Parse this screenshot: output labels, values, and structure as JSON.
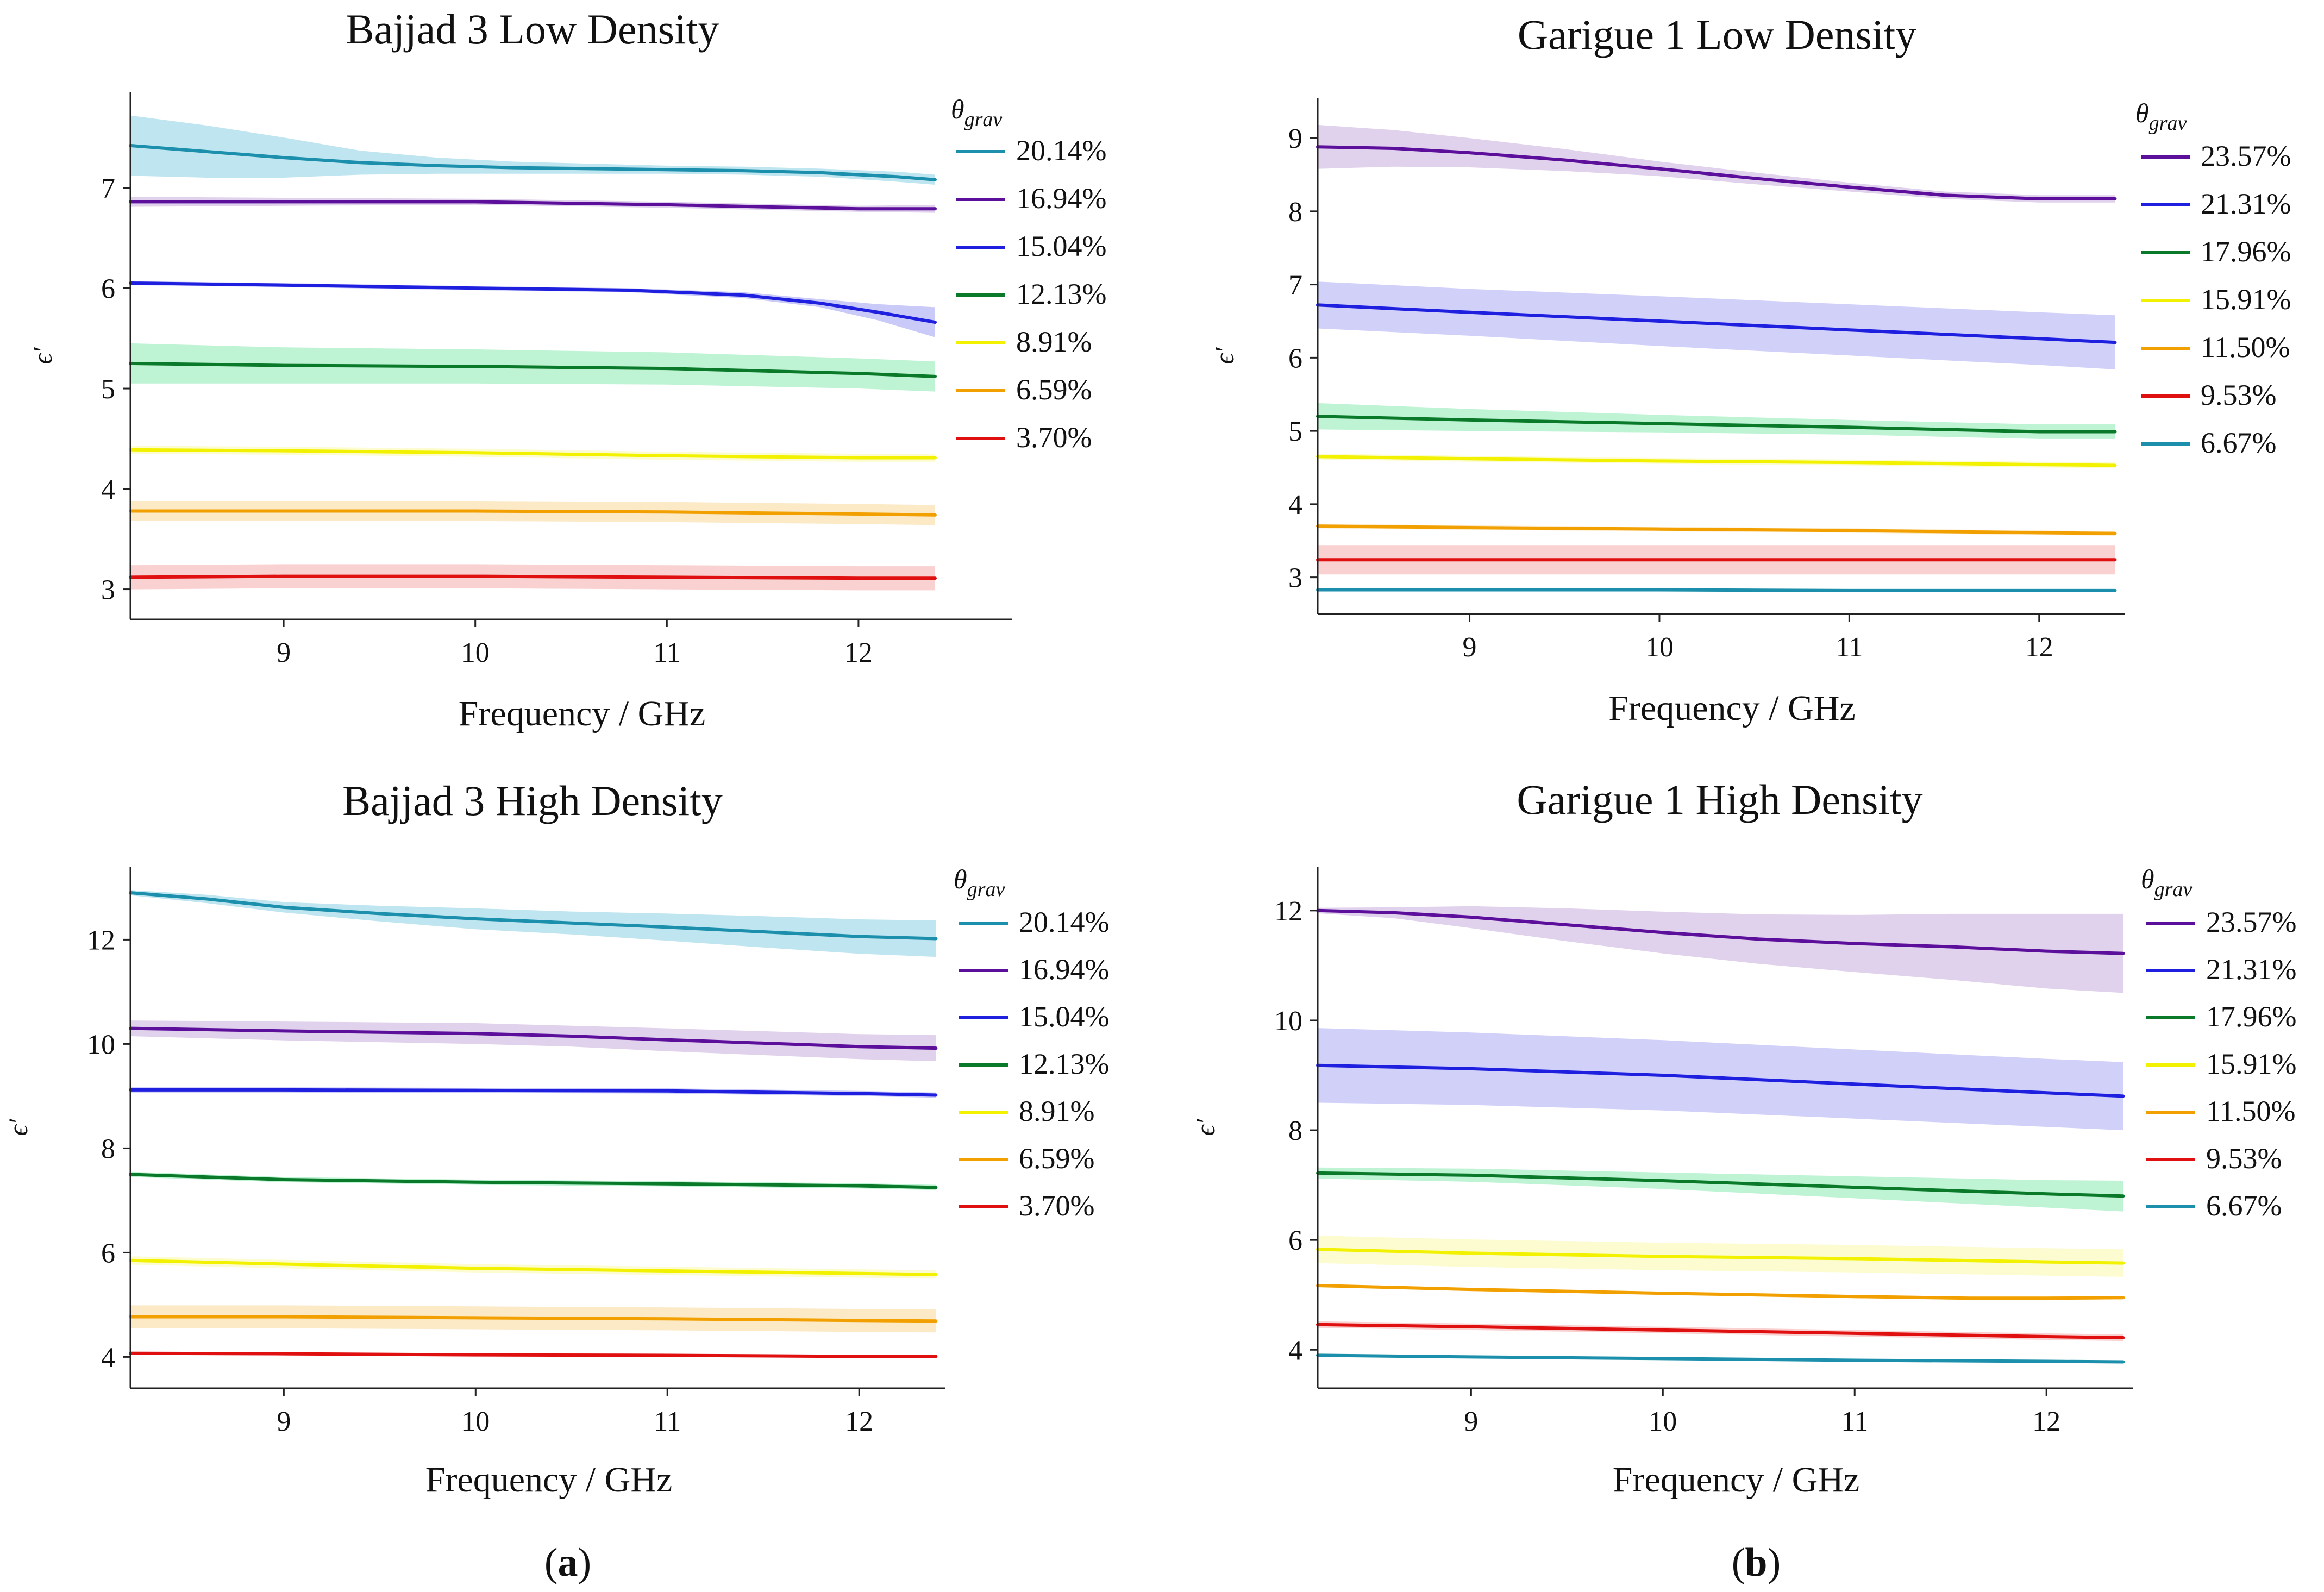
{
  "sub_labels": {
    "a": "a",
    "b": "b"
  },
  "chart_data": [
    {
      "type": "line",
      "title": "Bajjad 3 Low Density",
      "xlabel": "Frequency / GHz",
      "ylabel": "ϵ′",
      "xlim": [
        8.2,
        12.8
      ],
      "ylim": [
        2.7,
        7.95
      ],
      "xticks": [
        9,
        10,
        11,
        12
      ],
      "yticks": [
        3,
        4,
        5,
        6,
        7
      ],
      "legend_title": "θgrav",
      "legend_position": "right",
      "series": [
        {
          "name": "20.14%",
          "color": "#1b8fab",
          "band": "#a8dceb",
          "x": [
            8.2,
            8.6,
            9.0,
            9.4,
            9.8,
            10.2,
            10.6,
            11.0,
            11.4,
            11.8,
            12.2,
            12.4
          ],
          "y": [
            7.42,
            7.36,
            7.3,
            7.25,
            7.22,
            7.2,
            7.19,
            7.18,
            7.17,
            7.15,
            7.11,
            7.08
          ],
          "err": [
            0.3,
            0.26,
            0.2,
            0.12,
            0.08,
            0.06,
            0.05,
            0.04,
            0.04,
            0.04,
            0.05,
            0.05
          ]
        },
        {
          "name": "16.94%",
          "color": "#5b0f9b",
          "band": "#d6c2e6",
          "x": [
            8.2,
            9.0,
            10.0,
            11.0,
            12.0,
            12.4
          ],
          "y": [
            6.86,
            6.86,
            6.86,
            6.83,
            6.79,
            6.79
          ],
          "err": [
            0.05,
            0.04,
            0.03,
            0.03,
            0.03,
            0.04
          ]
        },
        {
          "name": "15.04%",
          "color": "#1f1fe0",
          "band": "#b8b8f5",
          "x": [
            8.2,
            9.0,
            10.0,
            10.8,
            11.4,
            11.8,
            12.1,
            12.4
          ],
          "y": [
            6.05,
            6.03,
            6.0,
            5.98,
            5.93,
            5.85,
            5.76,
            5.66
          ],
          "err": [
            0.02,
            0.02,
            0.02,
            0.02,
            0.03,
            0.04,
            0.08,
            0.15
          ]
        },
        {
          "name": "12.13%",
          "color": "#0a7a2a",
          "band": "#a8efc5",
          "x": [
            8.2,
            9.0,
            10.0,
            11.0,
            12.0,
            12.4
          ],
          "y": [
            5.25,
            5.23,
            5.22,
            5.2,
            5.15,
            5.12
          ],
          "err": [
            0.2,
            0.18,
            0.17,
            0.16,
            0.15,
            0.15
          ]
        },
        {
          "name": "8.91%",
          "color": "#f2f200",
          "band": "#fbfbc0",
          "x": [
            8.2,
            9.0,
            10.0,
            11.0,
            12.0,
            12.4
          ],
          "y": [
            4.39,
            4.38,
            4.36,
            4.33,
            4.31,
            4.31
          ],
          "err": [
            0.04,
            0.04,
            0.04,
            0.04,
            0.04,
            0.04
          ]
        },
        {
          "name": "6.59%",
          "color": "#f2a000",
          "band": "#fbe2b3",
          "x": [
            8.2,
            9.0,
            10.0,
            11.0,
            12.0,
            12.4
          ],
          "y": [
            3.78,
            3.78,
            3.78,
            3.77,
            3.75,
            3.74
          ],
          "err": [
            0.1,
            0.1,
            0.1,
            0.1,
            0.1,
            0.1
          ]
        },
        {
          "name": "3.70%",
          "color": "#e01010",
          "band": "#f7c2c2",
          "x": [
            8.2,
            9.0,
            10.0,
            11.0,
            12.0,
            12.4
          ],
          "y": [
            3.12,
            3.13,
            3.13,
            3.12,
            3.11,
            3.11
          ],
          "err": [
            0.12,
            0.12,
            0.12,
            0.12,
            0.12,
            0.12
          ]
        }
      ]
    },
    {
      "type": "line",
      "title": "Garigue 1 Low Density",
      "xlabel": "Frequency / GHz",
      "ylabel": "ϵ′",
      "xlim": [
        8.2,
        12.45
      ],
      "ylim": [
        2.5,
        9.55
      ],
      "xticks": [
        9,
        10,
        11,
        12
      ],
      "yticks": [
        3,
        4,
        5,
        6,
        7,
        8,
        9
      ],
      "legend_title": "θgrav",
      "legend_position": "right",
      "series": [
        {
          "name": "23.57%",
          "color": "#5b0f9b",
          "band": "#d6c2e6",
          "x": [
            8.2,
            8.6,
            9.0,
            9.5,
            10.0,
            10.5,
            11.0,
            11.5,
            12.0,
            12.4
          ],
          "y": [
            8.88,
            8.86,
            8.8,
            8.7,
            8.58,
            8.45,
            8.33,
            8.22,
            8.17,
            8.17
          ],
          "err": [
            0.3,
            0.25,
            0.2,
            0.15,
            0.1,
            0.08,
            0.06,
            0.05,
            0.05,
            0.05
          ]
        },
        {
          "name": "21.31%",
          "color": "#1f1fe0",
          "band": "#c0c0f7",
          "x": [
            8.2,
            9.0,
            10.0,
            11.0,
            12.0,
            12.4
          ],
          "y": [
            6.72,
            6.62,
            6.5,
            6.38,
            6.26,
            6.21
          ],
          "err": [
            0.32,
            0.32,
            0.34,
            0.35,
            0.36,
            0.37
          ]
        },
        {
          "name": "17.96%",
          "color": "#0a7a2a",
          "band": "#a8efc5",
          "x": [
            8.2,
            9.0,
            10.0,
            11.0,
            12.0,
            12.4
          ],
          "y": [
            5.2,
            5.15,
            5.1,
            5.05,
            4.99,
            4.99
          ],
          "err": [
            0.18,
            0.15,
            0.12,
            0.1,
            0.1,
            0.1
          ]
        },
        {
          "name": "15.91%",
          "color": "#f2f200",
          "band": "#fbfbc0",
          "x": [
            8.2,
            9.0,
            10.0,
            11.0,
            12.0,
            12.4
          ],
          "y": [
            4.65,
            4.62,
            4.59,
            4.57,
            4.54,
            4.53
          ],
          "err": [
            0.04,
            0.04,
            0.04,
            0.04,
            0.04,
            0.04
          ]
        },
        {
          "name": "11.50%",
          "color": "#f2a000",
          "band": "#fbe2b3",
          "x": [
            8.2,
            9.0,
            10.0,
            11.0,
            12.0,
            12.4
          ],
          "y": [
            3.7,
            3.68,
            3.66,
            3.64,
            3.61,
            3.6
          ],
          "err": [
            0.03,
            0.03,
            0.03,
            0.03,
            0.03,
            0.03
          ]
        },
        {
          "name": "9.53%",
          "color": "#e01010",
          "band": "#f7c2c2",
          "x": [
            8.2,
            9.0,
            10.0,
            11.0,
            12.0,
            12.4
          ],
          "y": [
            3.24,
            3.24,
            3.24,
            3.24,
            3.24,
            3.24
          ],
          "err": [
            0.2,
            0.2,
            0.2,
            0.2,
            0.2,
            0.2
          ]
        },
        {
          "name": "6.67%",
          "color": "#1b8fab",
          "band": "#a8dceb",
          "x": [
            8.2,
            9.0,
            10.0,
            11.0,
            12.0,
            12.4
          ],
          "y": [
            2.83,
            2.83,
            2.83,
            2.82,
            2.82,
            2.82
          ],
          "err": [
            0.02,
            0.02,
            0.02,
            0.02,
            0.02,
            0.02
          ]
        }
      ]
    },
    {
      "type": "line",
      "title": "Bajjad 3 High Density",
      "xlabel": "Frequency / GHz",
      "ylabel": "ϵ′",
      "xlim": [
        8.2,
        12.45
      ],
      "ylim": [
        3.4,
        13.4
      ],
      "xticks": [
        9,
        10,
        11,
        12
      ],
      "yticks": [
        4,
        6,
        8,
        10,
        12
      ],
      "legend_title": "θgrav",
      "legend_position": "right",
      "series": [
        {
          "name": "20.14%",
          "color": "#1b8fab",
          "band": "#a8dceb",
          "x": [
            8.2,
            8.6,
            9.0,
            9.5,
            10.0,
            10.5,
            11.0,
            11.5,
            12.0,
            12.4
          ],
          "y": [
            12.9,
            12.78,
            12.62,
            12.5,
            12.4,
            12.32,
            12.24,
            12.15,
            12.06,
            12.02
          ],
          "err": [
            0.05,
            0.08,
            0.1,
            0.15,
            0.2,
            0.22,
            0.26,
            0.3,
            0.33,
            0.35
          ]
        },
        {
          "name": "16.94%",
          "color": "#5b0f9b",
          "band": "#d6c2e6",
          "x": [
            8.2,
            9.0,
            10.0,
            10.5,
            11.0,
            12.0,
            12.4
          ],
          "y": [
            10.3,
            10.25,
            10.2,
            10.15,
            10.08,
            9.95,
            9.92
          ],
          "err": [
            0.15,
            0.18,
            0.2,
            0.2,
            0.22,
            0.24,
            0.25
          ]
        },
        {
          "name": "15.04%",
          "color": "#1f1fe0",
          "band": "#b8b8f5",
          "x": [
            8.2,
            9.0,
            10.0,
            11.0,
            12.0,
            12.4
          ],
          "y": [
            9.12,
            9.12,
            9.11,
            9.1,
            9.05,
            9.02
          ],
          "err": [
            0.05,
            0.05,
            0.05,
            0.05,
            0.05,
            0.05
          ]
        },
        {
          "name": "12.13%",
          "color": "#0a7a2a",
          "band": "#a8efc5",
          "x": [
            8.2,
            9.0,
            10.0,
            11.0,
            12.0,
            12.4
          ],
          "y": [
            7.5,
            7.4,
            7.35,
            7.32,
            7.28,
            7.25
          ],
          "err": [
            0.05,
            0.05,
            0.05,
            0.05,
            0.05,
            0.05
          ]
        },
        {
          "name": "8.91%",
          "color": "#f2f200",
          "band": "#fbfbc0",
          "x": [
            8.2,
            9.0,
            10.0,
            11.0,
            12.0,
            12.4
          ],
          "y": [
            5.85,
            5.78,
            5.7,
            5.65,
            5.6,
            5.58
          ],
          "err": [
            0.08,
            0.08,
            0.08,
            0.08,
            0.08,
            0.08
          ]
        },
        {
          "name": "6.59%",
          "color": "#f2a000",
          "band": "#fbe2b3",
          "x": [
            8.2,
            9.0,
            10.0,
            11.0,
            12.0,
            12.4
          ],
          "y": [
            4.77,
            4.77,
            4.75,
            4.73,
            4.7,
            4.69
          ],
          "err": [
            0.22,
            0.22,
            0.22,
            0.22,
            0.22,
            0.22
          ]
        },
        {
          "name": "3.70%",
          "color": "#e01010",
          "band": "#f7c2c2",
          "x": [
            8.2,
            9.0,
            10.0,
            11.0,
            12.0,
            12.4
          ],
          "y": [
            4.07,
            4.06,
            4.04,
            4.03,
            4.01,
            4.01
          ],
          "err": [
            0.03,
            0.03,
            0.03,
            0.03,
            0.03,
            0.03
          ]
        }
      ]
    },
    {
      "type": "line",
      "title": "Garigue 1 High Density",
      "xlabel": "Frequency / GHz",
      "ylabel": "ϵ′",
      "xlim": [
        8.2,
        12.45
      ],
      "ylim": [
        3.3,
        12.8
      ],
      "xticks": [
        9,
        10,
        11,
        12
      ],
      "yticks": [
        4,
        6,
        8,
        10,
        12
      ],
      "legend_title": "θgrav",
      "legend_position": "right",
      "series": [
        {
          "name": "23.57%",
          "color": "#5b0f9b",
          "band": "#d6c2e6",
          "x": [
            8.2,
            8.6,
            9.0,
            9.5,
            10.0,
            10.5,
            11.0,
            11.5,
            12.0,
            12.4
          ],
          "y": [
            12.0,
            11.96,
            11.88,
            11.74,
            11.6,
            11.48,
            11.4,
            11.34,
            11.26,
            11.22
          ],
          "err": [
            0.05,
            0.1,
            0.2,
            0.3,
            0.38,
            0.45,
            0.52,
            0.6,
            0.68,
            0.72
          ]
        },
        {
          "name": "21.31%",
          "color": "#1f1fe0",
          "band": "#c0c0f7",
          "x": [
            8.2,
            9.0,
            10.0,
            11.0,
            12.0,
            12.4
          ],
          "y": [
            9.18,
            9.12,
            9.0,
            8.84,
            8.68,
            8.62
          ],
          "err": [
            0.68,
            0.66,
            0.64,
            0.63,
            0.62,
            0.62
          ]
        },
        {
          "name": "17.96%",
          "color": "#0a7a2a",
          "band": "#a8efc5",
          "x": [
            8.2,
            9.0,
            10.0,
            11.0,
            12.0,
            12.4
          ],
          "y": [
            7.22,
            7.18,
            7.08,
            6.96,
            6.84,
            6.8
          ],
          "err": [
            0.1,
            0.12,
            0.15,
            0.2,
            0.25,
            0.28
          ]
        },
        {
          "name": "15.91%",
          "color": "#f2f200",
          "band": "#fbfbc0",
          "x": [
            8.2,
            9.0,
            10.0,
            11.0,
            12.0,
            12.4
          ],
          "y": [
            5.83,
            5.76,
            5.7,
            5.66,
            5.6,
            5.58
          ],
          "err": [
            0.25,
            0.25,
            0.25,
            0.25,
            0.25,
            0.25
          ]
        },
        {
          "name": "11.50%",
          "color": "#f2a000",
          "band": "#fbe2b3",
          "x": [
            8.2,
            9.0,
            10.0,
            11.0,
            11.6,
            12.0,
            12.4
          ],
          "y": [
            5.17,
            5.1,
            5.03,
            4.97,
            4.94,
            4.94,
            4.95
          ],
          "err": [
            0.03,
            0.03,
            0.03,
            0.03,
            0.03,
            0.03,
            0.03
          ]
        },
        {
          "name": "9.53%",
          "color": "#e01010",
          "band": "#f7c2c2",
          "x": [
            8.2,
            9.0,
            10.0,
            11.0,
            12.0,
            12.4
          ],
          "y": [
            4.46,
            4.42,
            4.36,
            4.3,
            4.24,
            4.22
          ],
          "err": [
            0.06,
            0.06,
            0.06,
            0.06,
            0.06,
            0.06
          ]
        },
        {
          "name": "6.67%",
          "color": "#1b8fab",
          "band": "#a8dceb",
          "x": [
            8.2,
            9.0,
            10.0,
            11.0,
            12.0,
            12.4
          ],
          "y": [
            3.9,
            3.87,
            3.84,
            3.81,
            3.79,
            3.78
          ],
          "err": [
            0.02,
            0.02,
            0.02,
            0.02,
            0.02,
            0.02
          ]
        }
      ]
    }
  ]
}
